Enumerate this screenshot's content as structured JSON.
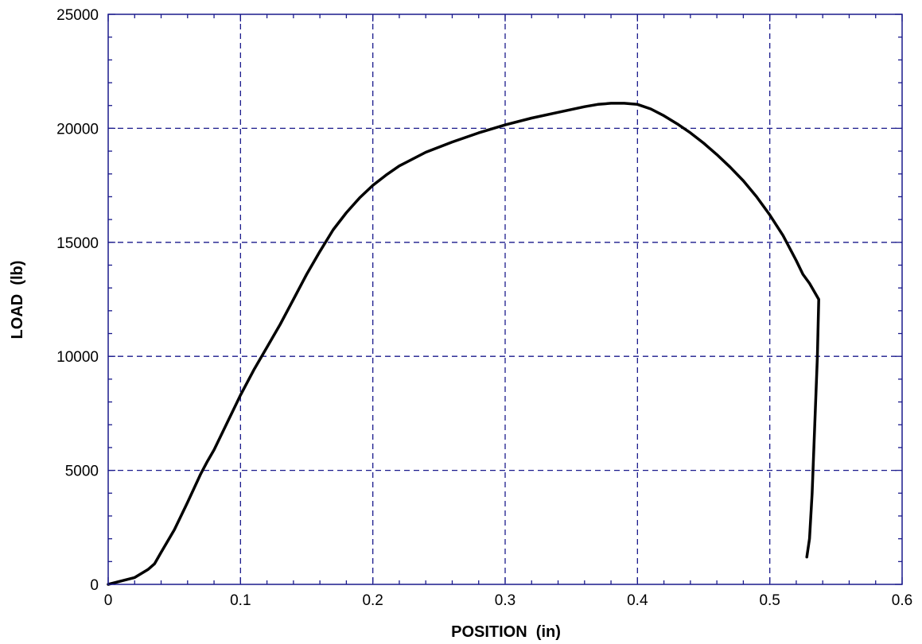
{
  "chart_data": {
    "type": "line",
    "title": "",
    "xlabel": "POSITION  (in)",
    "ylabel": "LOAD  (lb)",
    "xlim": [
      0,
      0.6
    ],
    "ylim": [
      0,
      25000
    ],
    "x_ticks": [
      0,
      0.1,
      0.2,
      0.3,
      0.4,
      0.5,
      0.6
    ],
    "x_tick_labels": [
      "0",
      "0.1",
      "0.2",
      "0.3",
      "0.4",
      "0.5",
      "0.6"
    ],
    "y_ticks": [
      0,
      5000,
      10000,
      15000,
      20000,
      25000
    ],
    "y_tick_labels": [
      "0",
      "5000",
      "10000",
      "15000",
      "20000",
      "25000"
    ],
    "grid": true,
    "grid_style": "dashed",
    "legend": "none",
    "colors": {
      "axis": "#1a1a8c",
      "grid": "#1a1a8c",
      "series": "#000000"
    },
    "series": [
      {
        "x": [
          0,
          0.01,
          0.02,
          0.03,
          0.035,
          0.04,
          0.05,
          0.06,
          0.07,
          0.075,
          0.08,
          0.09,
          0.1,
          0.11,
          0.12,
          0.125,
          0.13,
          0.14,
          0.15,
          0.16,
          0.17,
          0.18,
          0.19,
          0.2,
          0.21,
          0.22,
          0.24,
          0.26,
          0.28,
          0.3,
          0.32,
          0.34,
          0.36,
          0.37,
          0.38,
          0.39,
          0.4,
          0.41,
          0.42,
          0.43,
          0.44,
          0.45,
          0.46,
          0.47,
          0.48,
          0.49,
          0.5,
          0.51,
          0.52,
          0.525,
          0.53,
          0.537,
          0.536,
          0.534,
          0.532,
          0.53,
          0.528
        ],
        "y": [
          0,
          150,
          300,
          650,
          900,
          1400,
          2400,
          3600,
          4850,
          5400,
          5900,
          7100,
          8300,
          9400,
          10400,
          10900,
          11400,
          12500,
          13600,
          14600,
          15550,
          16300,
          16950,
          17500,
          17950,
          18350,
          18950,
          19400,
          19800,
          20150,
          20450,
          20700,
          20950,
          21050,
          21100,
          21100,
          21050,
          20850,
          20550,
          20200,
          19800,
          19350,
          18850,
          18300,
          17700,
          17000,
          16200,
          15300,
          14200,
          13600,
          13200,
          12500,
          10000,
          7000,
          4000,
          2000,
          1200
        ]
      }
    ]
  }
}
